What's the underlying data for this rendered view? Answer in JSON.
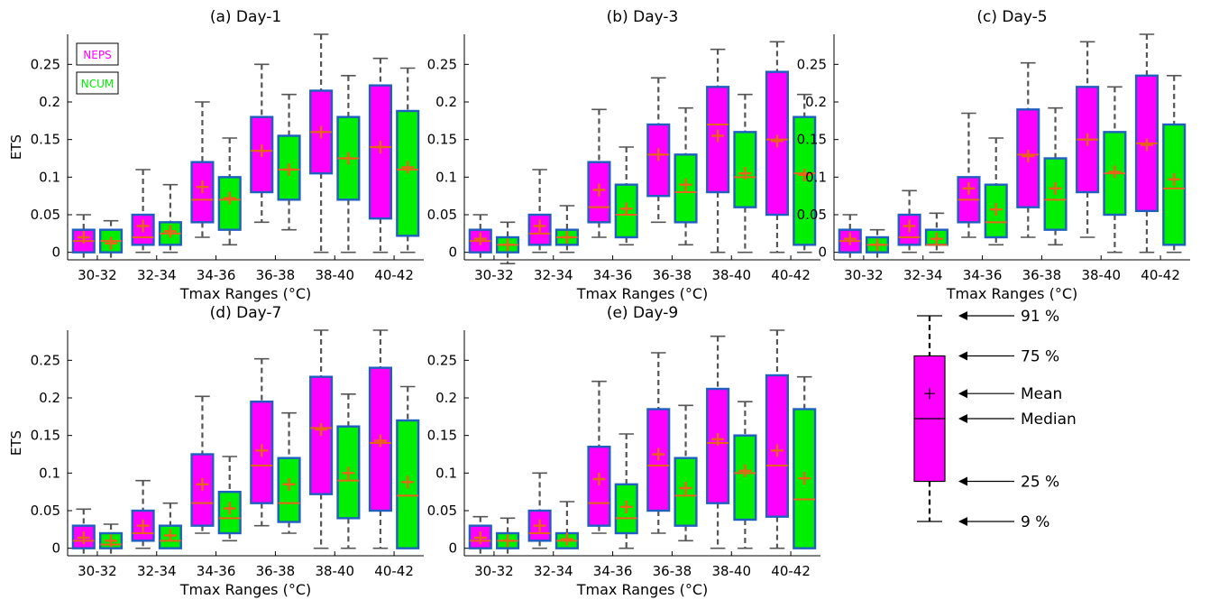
{
  "colors": {
    "neps": "#ff00ff",
    "ncum": "#00ee00",
    "box_edge": "#1f5fbf",
    "median": "#e8641b",
    "mean": "#e8641b",
    "whisker": "#555555"
  },
  "legend": {
    "neps": "NEPS",
    "ncum": "NCUM"
  },
  "chart_data": [
    {
      "type": "boxplot",
      "title": "(a) Day-1",
      "xlabel": "Tmax Ranges (°C)",
      "ylabel": "ETS",
      "categories": [
        "30-32",
        "32-34",
        "34-36",
        "36-38",
        "38-40",
        "40-42"
      ],
      "ylim": [
        -0.01,
        0.29
      ],
      "yticks": [
        0,
        0.05,
        0.1,
        0.15,
        0.2,
        0.25
      ],
      "series": [
        {
          "name": "NEPS",
          "boxes": [
            {
              "w_low": -0.01,
              "q1": 0.0,
              "median": 0.015,
              "q3": 0.03,
              "w_high": 0.05,
              "mean": 0.02
            },
            {
              "w_low": 0.0,
              "q1": 0.01,
              "median": 0.02,
              "q3": 0.05,
              "w_high": 0.11,
              "mean": 0.035
            },
            {
              "w_low": 0.02,
              "q1": 0.04,
              "median": 0.07,
              "q3": 0.12,
              "w_high": 0.2,
              "mean": 0.087
            },
            {
              "w_low": 0.04,
              "q1": 0.08,
              "median": 0.135,
              "q3": 0.18,
              "w_high": 0.25,
              "mean": 0.135
            },
            {
              "w_low": 0.0,
              "q1": 0.105,
              "median": 0.16,
              "q3": 0.215,
              "w_high": 0.29,
              "mean": 0.16
            },
            {
              "w_low": 0.0,
              "q1": 0.045,
              "median": 0.14,
              "q3": 0.222,
              "w_high": 0.258,
              "mean": 0.14
            }
          ]
        },
        {
          "name": "NCUM",
          "boxes": [
            {
              "w_low": -0.01,
              "q1": 0.0,
              "median": 0.015,
              "q3": 0.03,
              "w_high": 0.042,
              "mean": 0.012
            },
            {
              "w_low": 0.0,
              "q1": 0.01,
              "median": 0.025,
              "q3": 0.04,
              "w_high": 0.09,
              "mean": 0.028
            },
            {
              "w_low": 0.01,
              "q1": 0.03,
              "median": 0.07,
              "q3": 0.1,
              "w_high": 0.152,
              "mean": 0.072
            },
            {
              "w_low": 0.03,
              "q1": 0.07,
              "median": 0.11,
              "q3": 0.155,
              "w_high": 0.21,
              "mean": 0.11
            },
            {
              "w_low": 0.0,
              "q1": 0.07,
              "median": 0.125,
              "q3": 0.18,
              "w_high": 0.235,
              "mean": 0.125
            },
            {
              "w_low": 0.0,
              "q1": 0.022,
              "median": 0.11,
              "q3": 0.188,
              "w_high": 0.245,
              "mean": 0.113
            }
          ]
        }
      ]
    },
    {
      "type": "boxplot",
      "title": "(b) Day-3",
      "xlabel": "Tmax Ranges (°C)",
      "ylabel": "",
      "categories": [
        "30-32",
        "32-34",
        "34-36",
        "36-38",
        "38-40",
        "40-42"
      ],
      "ylim": [
        -0.01,
        0.29
      ],
      "yticks": [
        0,
        0.05,
        0.1,
        0.15,
        0.2,
        0.25
      ],
      "series": [
        {
          "name": "NEPS",
          "boxes": [
            {
              "w_low": -0.01,
              "q1": 0.0,
              "median": 0.015,
              "q3": 0.03,
              "w_high": 0.05,
              "mean": 0.018
            },
            {
              "w_low": 0.0,
              "q1": 0.01,
              "median": 0.025,
              "q3": 0.05,
              "w_high": 0.11,
              "mean": 0.035
            },
            {
              "w_low": 0.02,
              "q1": 0.04,
              "median": 0.06,
              "q3": 0.12,
              "w_high": 0.19,
              "mean": 0.083
            },
            {
              "w_low": 0.04,
              "q1": 0.075,
              "median": 0.13,
              "q3": 0.17,
              "w_high": 0.232,
              "mean": 0.13
            },
            {
              "w_low": 0.0,
              "q1": 0.08,
              "median": 0.17,
              "q3": 0.22,
              "w_high": 0.27,
              "mean": 0.155
            },
            {
              "w_low": 0.0,
              "q1": 0.05,
              "median": 0.15,
              "q3": 0.24,
              "w_high": 0.28,
              "mean": 0.148
            }
          ]
        },
        {
          "name": "NCUM",
          "boxes": [
            {
              "w_low": -0.015,
              "q1": 0.0,
              "median": 0.01,
              "q3": 0.02,
              "w_high": 0.04,
              "mean": 0.01
            },
            {
              "w_low": 0.0,
              "q1": 0.01,
              "median": 0.02,
              "q3": 0.03,
              "w_high": 0.062,
              "mean": 0.02
            },
            {
              "w_low": 0.01,
              "q1": 0.02,
              "median": 0.05,
              "q3": 0.09,
              "w_high": 0.14,
              "mean": 0.058
            },
            {
              "w_low": 0.01,
              "q1": 0.04,
              "median": 0.08,
              "q3": 0.13,
              "w_high": 0.192,
              "mean": 0.09
            },
            {
              "w_low": 0.0,
              "q1": 0.06,
              "median": 0.1,
              "q3": 0.16,
              "w_high": 0.21,
              "mean": 0.105
            },
            {
              "w_low": 0.0,
              "q1": 0.01,
              "median": 0.105,
              "q3": 0.18,
              "w_high": 0.21,
              "mean": 0.103
            }
          ]
        }
      ]
    },
    {
      "type": "boxplot",
      "title": "(c) Day-5",
      "xlabel": "Tmax Ranges (°C)",
      "ylabel": "",
      "categories": [
        "30-32",
        "32-34",
        "34-36",
        "36-38",
        "38-40",
        "40-42"
      ],
      "ylim": [
        -0.01,
        0.29
      ],
      "yticks": [
        0,
        0.05,
        0.1,
        0.15,
        0.2,
        0.25
      ],
      "series": [
        {
          "name": "NEPS",
          "boxes": [
            {
              "w_low": -0.01,
              "q1": 0.0,
              "median": 0.015,
              "q3": 0.03,
              "w_high": 0.05,
              "mean": 0.018
            },
            {
              "w_low": 0.0,
              "q1": 0.01,
              "median": 0.02,
              "q3": 0.05,
              "w_high": 0.082,
              "mean": 0.035
            },
            {
              "w_low": 0.02,
              "q1": 0.04,
              "median": 0.07,
              "q3": 0.1,
              "w_high": 0.185,
              "mean": 0.085
            },
            {
              "w_low": 0.02,
              "q1": 0.06,
              "median": 0.13,
              "q3": 0.19,
              "w_high": 0.252,
              "mean": 0.128
            },
            {
              "w_low": 0.02,
              "q1": 0.08,
              "median": 0.15,
              "q3": 0.22,
              "w_high": 0.28,
              "mean": 0.15
            },
            {
              "w_low": 0.0,
              "q1": 0.055,
              "median": 0.145,
              "q3": 0.235,
              "w_high": 0.29,
              "mean": 0.143
            }
          ]
        },
        {
          "name": "NCUM",
          "boxes": [
            {
              "w_low": -0.01,
              "q1": 0.0,
              "median": 0.01,
              "q3": 0.02,
              "w_high": 0.03,
              "mean": 0.01
            },
            {
              "w_low": 0.0,
              "q1": 0.01,
              "median": 0.01,
              "q3": 0.03,
              "w_high": 0.052,
              "mean": 0.018
            },
            {
              "w_low": 0.01,
              "q1": 0.02,
              "median": 0.04,
              "q3": 0.09,
              "w_high": 0.152,
              "mean": 0.057
            },
            {
              "w_low": 0.01,
              "q1": 0.03,
              "median": 0.07,
              "q3": 0.125,
              "w_high": 0.192,
              "mean": 0.085
            },
            {
              "w_low": 0.0,
              "q1": 0.05,
              "median": 0.105,
              "q3": 0.16,
              "w_high": 0.22,
              "mean": 0.107
            },
            {
              "w_low": 0.0,
              "q1": 0.01,
              "median": 0.085,
              "q3": 0.17,
              "w_high": 0.235,
              "mean": 0.097
            }
          ]
        }
      ]
    },
    {
      "type": "boxplot",
      "title": "(d) Day-7",
      "xlabel": "Tmax Ranges (°C)",
      "ylabel": "ETS",
      "categories": [
        "30-32",
        "32-34",
        "34-36",
        "36-38",
        "38-40",
        "40-42"
      ],
      "ylim": [
        -0.01,
        0.29
      ],
      "yticks": [
        0,
        0.05,
        0.1,
        0.15,
        0.2,
        0.25
      ],
      "series": [
        {
          "name": "NEPS",
          "boxes": [
            {
              "w_low": -0.01,
              "q1": 0.0,
              "median": 0.01,
              "q3": 0.03,
              "w_high": 0.052,
              "mean": 0.014
            },
            {
              "w_low": 0.0,
              "q1": 0.01,
              "median": 0.02,
              "q3": 0.05,
              "w_high": 0.09,
              "mean": 0.03
            },
            {
              "w_low": 0.02,
              "q1": 0.03,
              "median": 0.06,
              "q3": 0.125,
              "w_high": 0.202,
              "mean": 0.085
            },
            {
              "w_low": 0.03,
              "q1": 0.06,
              "median": 0.11,
              "q3": 0.195,
              "w_high": 0.252,
              "mean": 0.13
            },
            {
              "w_low": 0.0,
              "q1": 0.072,
              "median": 0.16,
              "q3": 0.228,
              "w_high": 0.29,
              "mean": 0.158
            },
            {
              "w_low": 0.0,
              "q1": 0.05,
              "median": 0.14,
              "q3": 0.24,
              "w_high": 0.29,
              "mean": 0.143
            }
          ]
        },
        {
          "name": "NCUM",
          "boxes": [
            {
              "w_low": -0.01,
              "q1": 0.0,
              "median": 0.005,
              "q3": 0.02,
              "w_high": 0.032,
              "mean": 0.01
            },
            {
              "w_low": 0.0,
              "q1": 0.0,
              "median": 0.01,
              "q3": 0.03,
              "w_high": 0.06,
              "mean": 0.017
            },
            {
              "w_low": 0.01,
              "q1": 0.02,
              "median": 0.04,
              "q3": 0.075,
              "w_high": 0.122,
              "mean": 0.053
            },
            {
              "w_low": 0.02,
              "q1": 0.035,
              "median": 0.06,
              "q3": 0.12,
              "w_high": 0.18,
              "mean": 0.085
            },
            {
              "w_low": 0.0,
              "q1": 0.04,
              "median": 0.09,
              "q3": 0.162,
              "w_high": 0.205,
              "mean": 0.1
            },
            {
              "w_low": 0.0,
              "q1": 0.0,
              "median": 0.07,
              "q3": 0.17,
              "w_high": 0.215,
              "mean": 0.088
            }
          ]
        }
      ]
    },
    {
      "type": "boxplot",
      "title": "(e) Day-9",
      "xlabel": "Tmax Ranges (°C)",
      "ylabel": "",
      "categories": [
        "30-32",
        "32-34",
        "34-36",
        "36-38",
        "38-40",
        "40-42"
      ],
      "ylim": [
        -0.01,
        0.29
      ],
      "yticks": [
        0,
        0.05,
        0.1,
        0.15,
        0.2,
        0.25
      ],
      "series": [
        {
          "name": "NEPS",
          "boxes": [
            {
              "w_low": -0.01,
              "q1": 0.0,
              "median": 0.01,
              "q3": 0.03,
              "w_high": 0.042,
              "mean": 0.014
            },
            {
              "w_low": 0.0,
              "q1": 0.01,
              "median": 0.02,
              "q3": 0.05,
              "w_high": 0.1,
              "mean": 0.03
            },
            {
              "w_low": 0.02,
              "q1": 0.03,
              "median": 0.06,
              "q3": 0.135,
              "w_high": 0.222,
              "mean": 0.092
            },
            {
              "w_low": 0.02,
              "q1": 0.05,
              "median": 0.11,
              "q3": 0.185,
              "w_high": 0.26,
              "mean": 0.125
            },
            {
              "w_low": 0.0,
              "q1": 0.06,
              "median": 0.14,
              "q3": 0.212,
              "w_high": 0.282,
              "mean": 0.145
            },
            {
              "w_low": 0.0,
              "q1": 0.042,
              "median": 0.11,
              "q3": 0.23,
              "w_high": 0.29,
              "mean": 0.13
            }
          ]
        },
        {
          "name": "NCUM",
          "boxes": [
            {
              "w_low": -0.01,
              "q1": 0.0,
              "median": 0.01,
              "q3": 0.02,
              "w_high": 0.04,
              "mean": 0.01
            },
            {
              "w_low": 0.0,
              "q1": 0.0,
              "median": 0.01,
              "q3": 0.02,
              "w_high": 0.062,
              "mean": 0.012
            },
            {
              "w_low": 0.0,
              "q1": 0.02,
              "median": 0.04,
              "q3": 0.085,
              "w_high": 0.152,
              "mean": 0.055
            },
            {
              "w_low": 0.01,
              "q1": 0.03,
              "median": 0.07,
              "q3": 0.12,
              "w_high": 0.19,
              "mean": 0.08
            },
            {
              "w_low": 0.0,
              "q1": 0.038,
              "median": 0.1,
              "q3": 0.15,
              "w_high": 0.195,
              "mean": 0.103
            },
            {
              "w_low": 0.0,
              "q1": 0.0,
              "median": 0.065,
              "q3": 0.185,
              "w_high": 0.228,
              "mean": 0.093
            }
          ]
        }
      ]
    }
  ],
  "key": {
    "labels": {
      "w_high": "91 %",
      "q3": "75 %",
      "mean": "Mean",
      "median": "Median",
      "q1": "25 %",
      "w_low": "9 %"
    },
    "box": {
      "w_low": 0.09,
      "q1": 0.25,
      "median": 0.5,
      "mean": 0.6,
      "q3": 0.75,
      "w_high": 0.91
    }
  }
}
